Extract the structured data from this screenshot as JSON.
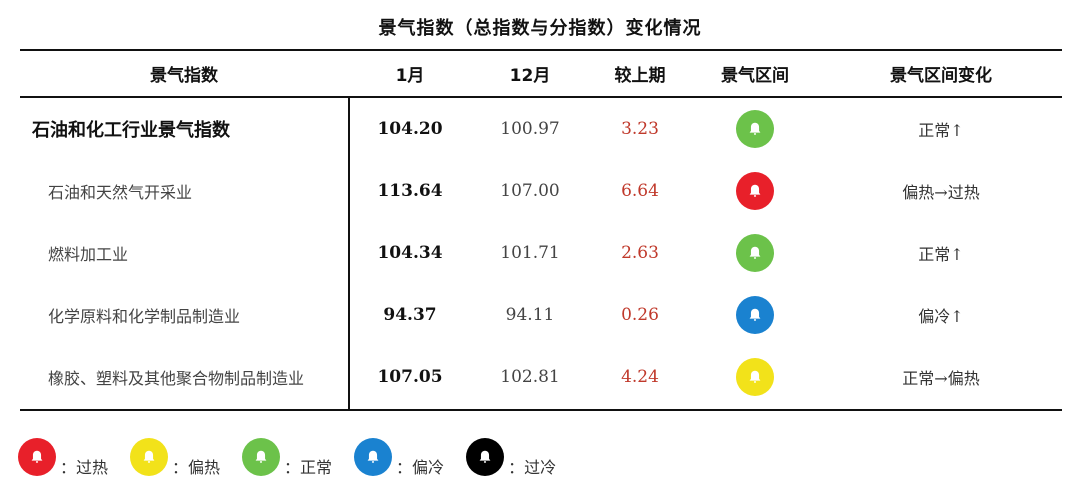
{
  "title": "景气指数（总指数与分指数）变化情况",
  "table": {
    "headers": {
      "name": "景气指数",
      "jan": "1月",
      "dec": "12月",
      "change": "较上期",
      "zone": "景气区间",
      "zone_change": "景气区间变化"
    },
    "rows": [
      {
        "name": "石油和化工行业景气指数",
        "jan": "104.20",
        "dec": "100.97",
        "change": "3.23",
        "zone": "正常",
        "zone_color": "#6cc24a",
        "zone_change": "正常↑"
      },
      {
        "name": "石油和天然气开采业",
        "jan": "113.64",
        "dec": "107.00",
        "change": "6.64",
        "zone": "过热",
        "zone_color": "#e8202a",
        "zone_change": "偏热→过热"
      },
      {
        "name": "燃料加工业",
        "jan": "104.34",
        "dec": "101.71",
        "change": "2.63",
        "zone": "正常",
        "zone_color": "#6cc24a",
        "zone_change": "正常↑"
      },
      {
        "name": "化学原料和化学制品制造业",
        "jan": "94.37",
        "dec": "94.11",
        "change": "0.26",
        "zone": "偏冷",
        "zone_color": "#1a82d0",
        "zone_change": "偏冷↑"
      },
      {
        "name": "橡胶、塑料及其他聚合物制品制造业",
        "jan": "107.05",
        "dec": "102.81",
        "change": "4.24",
        "zone": "偏热",
        "zone_color": "#f2e21a",
        "zone_change": "正常→偏热"
      }
    ]
  },
  "legend": [
    {
      "icon": "bell-icon",
      "color": "#e8202a",
      "label": "：过热"
    },
    {
      "icon": "bell-icon",
      "color": "#f2e21a",
      "label": "：偏热"
    },
    {
      "icon": "bell-icon",
      "color": "#6cc24a",
      "label": "：正常"
    },
    {
      "icon": "bell-icon",
      "color": "#1a82d0",
      "label": "：偏冷"
    },
    {
      "icon": "bell-icon",
      "color": "#000000",
      "label": "：过冷"
    }
  ]
}
